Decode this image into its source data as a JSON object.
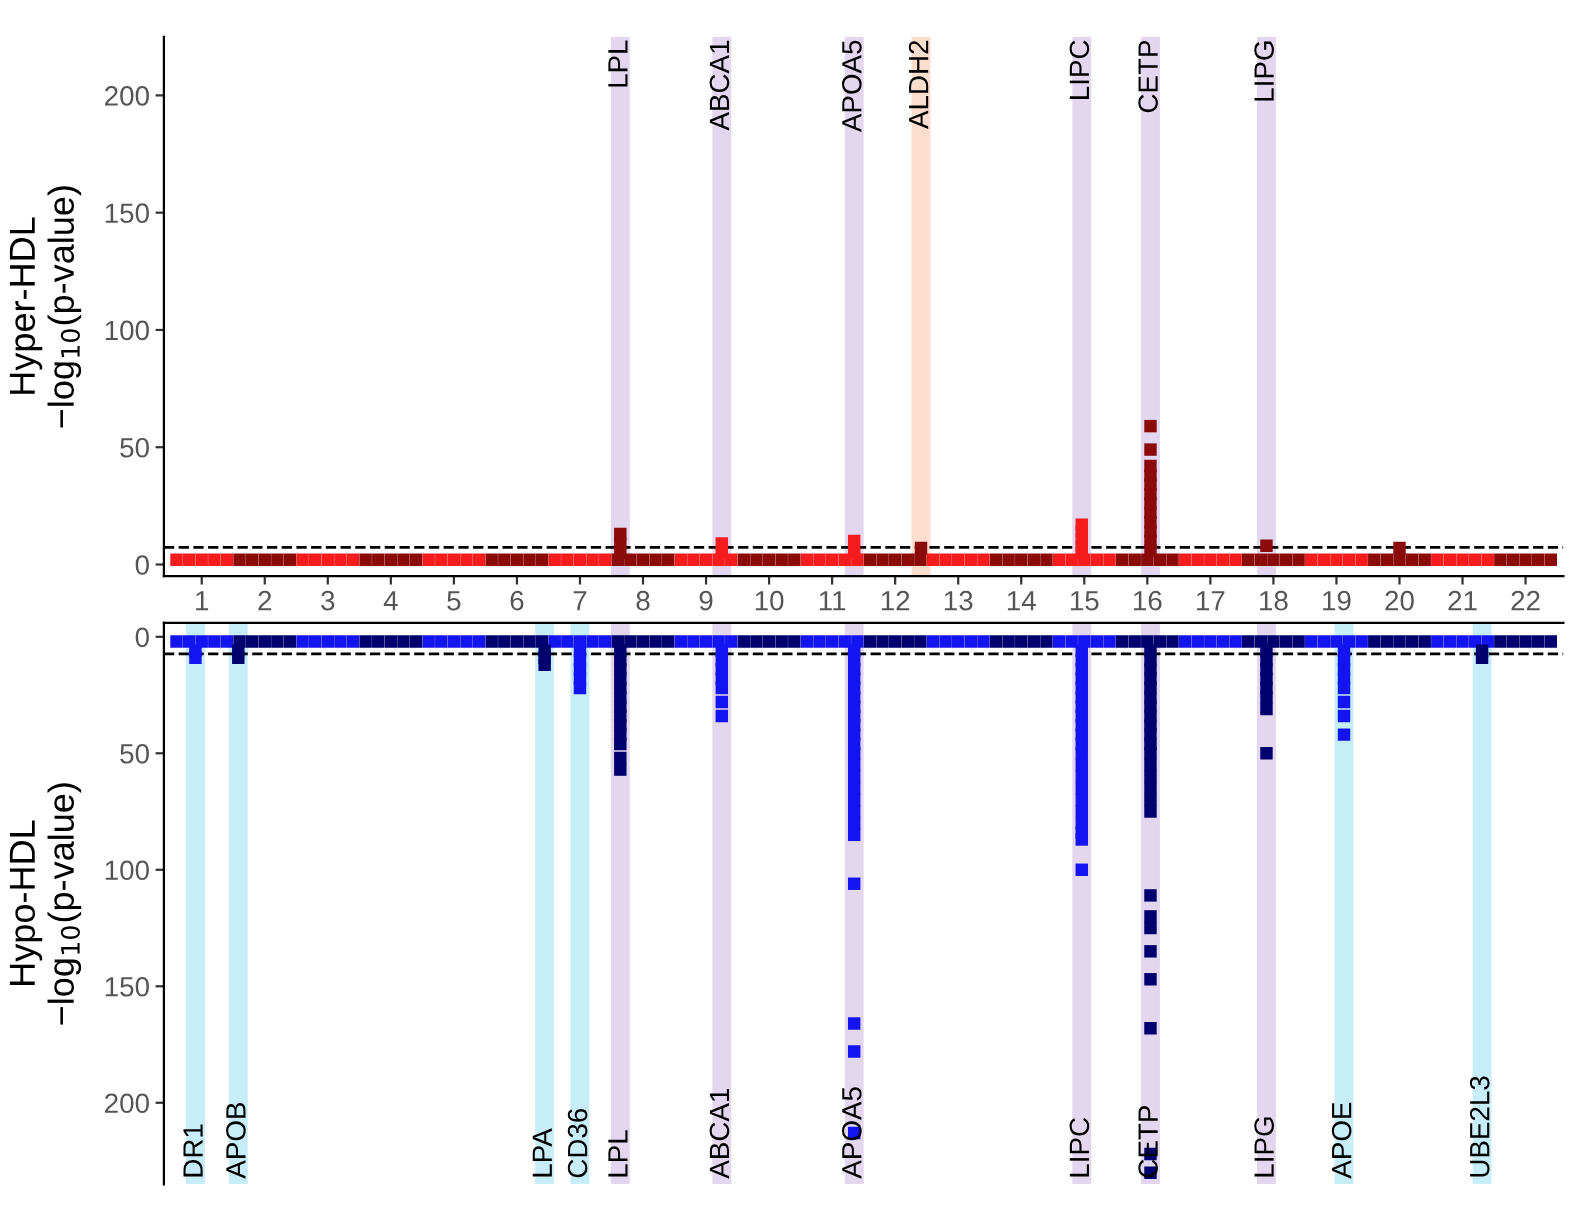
{
  "chart_data": [
    {
      "type": "scatter",
      "ylabel": "Hyper-HDL\n−log$_{10}$(p-value)",
      "xlim": [
        0.4,
        22.6
      ],
      "ylim": [
        -5,
        225
      ],
      "yticks": [
        0,
        50,
        100,
        150,
        200
      ],
      "marker": "square",
      "grid": false,
      "xticks": [
        1,
        2,
        3,
        4,
        5,
        6,
        7,
        8,
        9,
        10,
        11,
        12,
        13,
        14,
        15,
        16,
        17,
        18,
        19,
        20,
        21,
        22
      ],
      "bands": [
        {
          "axis": "x",
          "from": 7.49,
          "to": 7.79,
          "label": "LPL",
          "color": "#e3d7ef"
        },
        {
          "axis": "x",
          "from": 9.1,
          "to": 9.4,
          "label": "ABCA1",
          "color": "#e3d7ef"
        },
        {
          "axis": "x",
          "from": 11.2,
          "to": 11.5,
          "label": "APOA5",
          "color": "#e3d7ef"
        },
        {
          "axis": "x",
          "from": 12.26,
          "to": 12.56,
          "label": "ALDH2",
          "color": "#fcdecf"
        },
        {
          "axis": "x",
          "from": 14.81,
          "to": 15.11,
          "label": "LIPC",
          "color": "#e3d7ef"
        },
        {
          "axis": "x",
          "from": 15.9,
          "to": 16.2,
          "label": "CETP",
          "color": "#e3d7ef"
        },
        {
          "axis": "x",
          "from": 17.74,
          "to": 18.04,
          "label": "LIPG",
          "color": "#e3d7ef"
        }
      ],
      "ref_lines": [
        {
          "axis": "y",
          "value": 7.3,
          "line_style": "dashed",
          "color": "#000000"
        }
      ],
      "series": [
        {
          "color": "#f41c1c",
          "x": [
            0.6,
            0.8,
            1,
            1.2,
            1.4,
            2.6,
            2.8,
            3,
            3.2,
            3.4,
            4.6,
            4.8,
            5,
            5.2,
            5.4,
            6.6,
            6.8,
            7,
            7.2,
            7.4,
            8.6,
            8.8,
            9,
            9.2,
            9.4,
            10.6,
            10.8,
            11,
            11.2,
            11.4,
            12.6,
            12.8,
            13,
            13.2,
            13.4,
            14.6,
            14.8,
            15,
            15.2,
            15.4,
            16.6,
            16.8,
            17,
            17.2,
            17.4,
            18.6,
            18.8,
            19,
            19.2,
            19.4,
            20.6,
            20.8,
            21,
            21.2,
            21.4
          ],
          "values": [
            2,
            2,
            2,
            2,
            2,
            2,
            2,
            2,
            2,
            2,
            2,
            2,
            2,
            2,
            2,
            2,
            2,
            2,
            2,
            2,
            2,
            2,
            2,
            2,
            2,
            2,
            2,
            2,
            2,
            2,
            2,
            2,
            2,
            2,
            2,
            2,
            2,
            2,
            2,
            2,
            2,
            2,
            2,
            2,
            2,
            2,
            2,
            2,
            2,
            2,
            2,
            2,
            2,
            2,
            2
          ]
        },
        {
          "color": "#8b0a0a",
          "x": [
            1.6,
            1.8,
            2,
            2.2,
            2.4,
            3.6,
            3.8,
            4,
            4.2,
            4.4,
            5.6,
            5.8,
            6,
            6.2,
            6.4,
            7.6,
            7.8,
            8,
            8.2,
            8.4,
            9.6,
            9.8,
            10,
            10.2,
            10.4,
            11.6,
            11.8,
            12,
            12.2,
            12.4,
            13.6,
            13.8,
            14,
            14.2,
            14.4,
            15.6,
            15.8,
            16,
            16.2,
            16.4,
            17.6,
            17.8,
            18,
            18.2,
            18.4,
            19.6,
            19.8,
            20,
            20.2,
            20.4,
            21.6,
            21.8,
            22,
            22.2,
            22.4
          ],
          "values": [
            2,
            2,
            2,
            2,
            2,
            2,
            2,
            2,
            2,
            2,
            2,
            2,
            2,
            2,
            2,
            2,
            2,
            2,
            2,
            2,
            2,
            2,
            2,
            2,
            2,
            2,
            2,
            2,
            2,
            2,
            2,
            2,
            2,
            2,
            2,
            2,
            2,
            2,
            2,
            2,
            2,
            2,
            2,
            2,
            2,
            2,
            2,
            2,
            2,
            2,
            2,
            2,
            2,
            2,
            2
          ]
        },
        {
          "color": "#f41c1c",
          "x": [
            9.25,
            9.25
          ],
          "values": [
            5,
            9
          ]
        },
        {
          "color": "#f41c1c",
          "x": [
            11.35,
            11.35
          ],
          "values": [
            5,
            10
          ]
        },
        {
          "color": "#f41c1c",
          "x": [
            14.96,
            14.96,
            14.96,
            14.96,
            14.96
          ],
          "values": [
            5,
            8,
            11,
            14,
            17
          ]
        },
        {
          "color": "#8b0a0a",
          "x": [
            7.64,
            7.64,
            7.64
          ],
          "values": [
            5,
            9,
            13
          ]
        },
        {
          "color": "#8b0a0a",
          "x": [
            12.41
          ],
          "values": [
            7
          ]
        },
        {
          "color": "#8b0a0a",
          "x": [
            16.05,
            16.05,
            16.05,
            16.05,
            16.05,
            16.05,
            16.05,
            16.05,
            16.05,
            16.05,
            16.05,
            16.05
          ],
          "values": [
            6,
            10,
            14,
            18,
            22,
            26,
            30,
            34,
            38,
            42,
            49,
            59
          ]
        },
        {
          "color": "#8b0a0a",
          "x": [
            17.89
          ],
          "values": [
            8
          ]
        },
        {
          "color": "#8b0a0a",
          "x": [
            20
          ],
          "values": [
            7
          ]
        }
      ]
    },
    {
      "type": "scatter",
      "ylabel": "Hypo-HDL\n−log$_{10}$(p-value)",
      "xlim": [
        0.4,
        22.6
      ],
      "ylim": [
        235,
        -6
      ],
      "yticks": [
        0,
        50,
        100,
        150,
        200
      ],
      "marker": "square",
      "grid": false,
      "tick_labels": "y",
      "xticks": [
        1,
        2,
        3,
        4,
        5,
        6,
        7,
        8,
        9,
        10,
        11,
        12,
        13,
        14,
        15,
        16,
        17,
        18,
        19,
        20,
        21,
        22
      ],
      "bands": [
        {
          "axis": "x",
          "from": 0.75,
          "to": 1.05,
          "label": "DR1",
          "color": "#c7edf8"
        },
        {
          "axis": "x",
          "from": 1.43,
          "to": 1.73,
          "label": "APOB",
          "color": "#c7edf8"
        },
        {
          "axis": "x",
          "from": 6.29,
          "to": 6.59,
          "label": "LPA",
          "color": "#c7edf8"
        },
        {
          "axis": "x",
          "from": 6.85,
          "to": 7.15,
          "label": "CD36",
          "color": "#c7edf8"
        },
        {
          "axis": "x",
          "from": 7.49,
          "to": 7.79,
          "label": "LPL",
          "color": "#e3d7ef"
        },
        {
          "axis": "x",
          "from": 9.1,
          "to": 9.4,
          "label": "ABCA1",
          "color": "#e3d7ef"
        },
        {
          "axis": "x",
          "from": 11.2,
          "to": 11.5,
          "label": "APOA5",
          "color": "#e3d7ef"
        },
        {
          "axis": "x",
          "from": 14.81,
          "to": 15.11,
          "label": "LIPC",
          "color": "#e3d7ef"
        },
        {
          "axis": "x",
          "from": 15.9,
          "to": 16.2,
          "label": "CETP",
          "color": "#e3d7ef"
        },
        {
          "axis": "x",
          "from": 17.74,
          "to": 18.04,
          "label": "LIPG",
          "color": "#e3d7ef"
        },
        {
          "axis": "x",
          "from": 18.97,
          "to": 19.27,
          "label": "APOE",
          "color": "#c7edf8"
        },
        {
          "axis": "x",
          "from": 21.16,
          "to": 21.46,
          "label": "UBE2L3",
          "color": "#c7edf8"
        }
      ],
      "ref_lines": [
        {
          "axis": "y",
          "value": 7.3,
          "line_style": "dashed",
          "color": "#000000"
        }
      ],
      "series": [
        {
          "color": "#1414f0",
          "x": [
            0.6,
            0.8,
            1,
            1.2,
            1.4,
            2.6,
            2.8,
            3,
            3.2,
            3.4,
            4.6,
            4.8,
            5,
            5.2,
            5.4,
            6.6,
            6.8,
            7,
            7.2,
            7.4,
            8.6,
            8.8,
            9,
            9.2,
            9.4,
            10.6,
            10.8,
            11,
            11.2,
            11.4,
            12.6,
            12.8,
            13,
            13.2,
            13.4,
            14.6,
            14.8,
            15,
            15.2,
            15.4,
            16.6,
            16.8,
            17,
            17.2,
            17.4,
            18.6,
            18.8,
            19,
            19.2,
            19.4,
            20.6,
            20.8,
            21,
            21.2,
            21.4
          ],
          "values": [
            2,
            2,
            2,
            2,
            2,
            2,
            2,
            2,
            2,
            2,
            2,
            2,
            2,
            2,
            2,
            2,
            2,
            2,
            2,
            2,
            2,
            2,
            2,
            2,
            2,
            2,
            2,
            2,
            2,
            2,
            2,
            2,
            2,
            2,
            2,
            2,
            2,
            2,
            2,
            2,
            2,
            2,
            2,
            2,
            2,
            2,
            2,
            2,
            2,
            2,
            2,
            2,
            2,
            2,
            2
          ]
        },
        {
          "color": "#00006e",
          "x": [
            1.6,
            1.8,
            2,
            2.2,
            2.4,
            3.6,
            3.8,
            4,
            4.2,
            4.4,
            5.6,
            5.8,
            6,
            6.2,
            6.4,
            7.6,
            7.8,
            8,
            8.2,
            8.4,
            9.6,
            9.8,
            10,
            10.2,
            10.4,
            11.6,
            11.8,
            12,
            12.2,
            12.4,
            13.6,
            13.8,
            14,
            14.2,
            14.4,
            15.6,
            15.8,
            16,
            16.2,
            16.4,
            17.6,
            17.8,
            18,
            18.2,
            18.4,
            19.6,
            19.8,
            20,
            20.2,
            20.4,
            21.6,
            21.8,
            22,
            22.2,
            22.4
          ],
          "values": [
            2,
            2,
            2,
            2,
            2,
            2,
            2,
            2,
            2,
            2,
            2,
            2,
            2,
            2,
            2,
            2,
            2,
            2,
            2,
            2,
            2,
            2,
            2,
            2,
            2,
            2,
            2,
            2,
            2,
            2,
            2,
            2,
            2,
            2,
            2,
            2,
            2,
            2,
            2,
            2,
            2,
            2,
            2,
            2,
            2,
            2,
            2,
            2,
            2,
            2,
            2,
            2,
            2,
            2,
            2
          ]
        },
        {
          "color": "#1414f0",
          "x": [
            0.9,
            0.9
          ],
          "values": [
            6,
            9
          ]
        },
        {
          "color": "#1414f0",
          "x": [
            7,
            7,
            7,
            7,
            7
          ],
          "values": [
            6,
            10,
            14,
            18,
            22
          ]
        },
        {
          "color": "#1414f0",
          "x": [
            9.25,
            9.25,
            9.25,
            9.25,
            9.25,
            9.25,
            9.25
          ],
          "values": [
            6,
            10,
            14,
            18,
            22,
            28,
            34
          ]
        },
        {
          "color": "#1414f0",
          "x": [
            11.35,
            11.35,
            11.35,
            11.35,
            11.35,
            11.35,
            11.35,
            11.35,
            11.35,
            11.35,
            11.35,
            11.35,
            11.35,
            11.35,
            11.35,
            11.35,
            11.35,
            11.35,
            11.35,
            11.35,
            11.35,
            11.35,
            11.35
          ],
          "values": [
            6,
            10,
            14,
            18,
            22,
            26,
            30,
            34,
            38,
            42,
            46,
            50,
            55,
            60,
            65,
            70,
            75,
            80,
            85,
            106,
            166,
            178,
            213
          ]
        },
        {
          "color": "#1414f0",
          "x": [
            14.96,
            14.96,
            14.96,
            14.96,
            14.96,
            14.96,
            14.96,
            14.96,
            14.96,
            14.96,
            14.96,
            14.96,
            14.96,
            14.96,
            14.96,
            14.96,
            14.96,
            14.96,
            14.96,
            14.96,
            14.96
          ],
          "values": [
            6,
            10,
            14,
            18,
            22,
            26,
            30,
            34,
            38,
            42,
            46,
            50,
            55,
            60,
            65,
            70,
            75,
            80,
            84,
            87,
            100
          ]
        },
        {
          "color": "#1414f0",
          "x": [
            19.12,
            19.12,
            19.12,
            19.12,
            19.12,
            19.12,
            19.12,
            19.12
          ],
          "values": [
            6,
            10,
            14,
            18,
            22,
            28,
            34,
            42
          ]
        },
        {
          "color": "#00006e",
          "x": [
            1.58,
            1.58
          ],
          "values": [
            6,
            9
          ]
        },
        {
          "color": "#00006e",
          "x": [
            6.44,
            6.44,
            6.44
          ],
          "values": [
            6,
            9,
            12
          ]
        },
        {
          "color": "#00006e",
          "x": [
            7.64,
            7.64,
            7.64,
            7.64,
            7.64,
            7.64,
            7.64,
            7.64,
            7.64,
            7.64,
            7.64,
            7.64,
            7.64
          ],
          "values": [
            6,
            10,
            14,
            18,
            22,
            26,
            30,
            34,
            38,
            42,
            46,
            52,
            57
          ]
        },
        {
          "color": "#00006e",
          "x": [
            16.05,
            16.05,
            16.05,
            16.05,
            16.05,
            16.05,
            16.05,
            16.05,
            16.05,
            16.05,
            16.05,
            16.05,
            16.05,
            16.05,
            16.05,
            16.05,
            16.05,
            16.05,
            16.05,
            16.05,
            16.05,
            16.05,
            16.05,
            16.05,
            16.05
          ],
          "values": [
            6,
            10,
            14,
            18,
            22,
            26,
            30,
            34,
            38,
            42,
            46,
            50,
            55,
            60,
            65,
            70,
            75,
            111,
            120,
            125,
            135,
            147,
            168,
            222,
            230
          ]
        },
        {
          "color": "#00006e",
          "x": [
            17.89,
            17.89,
            17.89,
            17.89,
            17.89,
            17.89,
            17.89,
            17.89
          ],
          "values": [
            6,
            10,
            14,
            18,
            22,
            26,
            31,
            50
          ]
        },
        {
          "color": "#00006e",
          "x": [
            21.31,
            21.31
          ],
          "values": [
            6,
            9
          ]
        }
      ]
    }
  ]
}
